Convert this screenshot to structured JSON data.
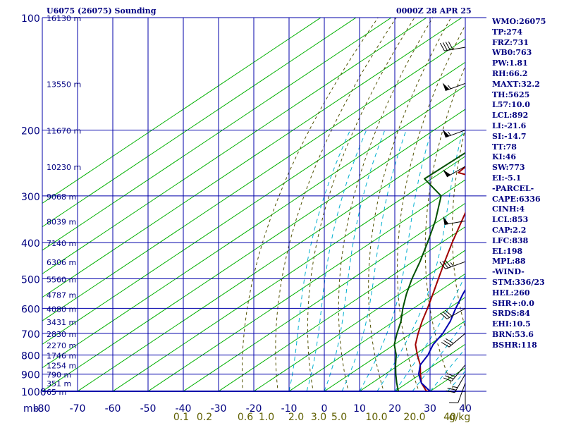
{
  "header": {
    "station": "U6075 (26075) Sounding",
    "time": "0000Z 28 APR 25"
  },
  "stats": [
    "WMO:26075",
    "TP:274",
    "FRZ:731",
    "WB0:763",
    "PW:1.81",
    "RH:66.2",
    "MAXT:32.2",
    "TH:5625",
    "L57:10.0",
    "LCL:892",
    "LI:-21.6",
    "SI:-14.7",
    "TT:78",
    "KI:46",
    "SW:773",
    "EI:-5.1",
    "-PARCEL-",
    "CAPE:6336",
    "CINH:4",
    "LCL:853",
    "CAP:2.2",
    "LFC:838",
    "EL:198",
    "MPL:88",
    "-WIND-",
    "STM:336/23",
    "HEL:260",
    "SHR+:0.0",
    "SRDS:84",
    "EHI:10.5",
    "BRN:53.6",
    "BSHR:118"
  ],
  "colors": {
    "grid": "#0000aa",
    "isotherm": "#00b000",
    "dry_adiabat": "#505000",
    "moist_adiabat": "#00b0d0",
    "temperature": "#a00000",
    "dewpoint": "#005000",
    "parcel": "#0000b0",
    "text": "#000080",
    "mixing_ratio_labels": "#606000"
  },
  "chart_data": {
    "type": "line",
    "subtype": "skew-T log-P sounding",
    "title": "U6075 (26075) Sounding",
    "ylabel": "mb",
    "xlabel": "",
    "yscale": "log",
    "xlim": [
      -80,
      40
    ],
    "ylim": [
      1000,
      100
    ],
    "pressure_ticks": [
      100,
      200,
      300,
      400,
      500,
      600,
      700,
      800,
      900,
      1000
    ],
    "temperature_ticks": [
      "-80",
      "-70",
      "-60",
      "-50",
      "-40",
      "-30",
      "-20",
      "-10",
      "0",
      "10",
      "20",
      "30",
      "40"
    ],
    "mixing_ratio_labels": [
      "0.1",
      "0.2",
      "0.6",
      "1.0",
      "2.0",
      "3.0",
      "5.0",
      "10.0",
      "20.0",
      "40",
      "g/kg"
    ],
    "height_labels": [
      {
        "p": 100,
        "label": "16130 m"
      },
      {
        "p": 150,
        "label": "13550 m"
      },
      {
        "p": 200,
        "label": "11670 m"
      },
      {
        "p": 250,
        "label": "10230 m"
      },
      {
        "p": 300,
        "label": "9068 m"
      },
      {
        "p": 350,
        "label": "8039 m"
      },
      {
        "p": 400,
        "label": "7140 m"
      },
      {
        "p": 450,
        "label": "6306 m"
      },
      {
        "p": 500,
        "label": "5560 m"
      },
      {
        "p": 550,
        "label": "4787 m"
      },
      {
        "p": 600,
        "label": "4080 m"
      },
      {
        "p": 650,
        "label": "3431 m"
      },
      {
        "p": 700,
        "label": "2830 m"
      },
      {
        "p": 750,
        "label": "2270 m"
      },
      {
        "p": 800,
        "label": "1746 m"
      },
      {
        "p": 850,
        "label": "1254 m"
      },
      {
        "p": 900,
        "label": "790 m"
      },
      {
        "p": 950,
        "label": "351 m"
      },
      {
        "p": 1000,
        "label": "65 m"
      }
    ],
    "series": [
      {
        "key": "temperature",
        "points": [
          {
            "p": 1007,
            "t": 32
          },
          {
            "p": 1000,
            "t": 29
          },
          {
            "p": 950,
            "t": 24
          },
          {
            "p": 900,
            "t": 20
          },
          {
            "p": 850,
            "t": 16
          },
          {
            "p": 800,
            "t": 11
          },
          {
            "p": 750,
            "t": 6
          },
          {
            "p": 700,
            "t": 2
          },
          {
            "p": 650,
            "t": -2
          },
          {
            "p": 600,
            "t": -6
          },
          {
            "p": 550,
            "t": -10.5
          },
          {
            "p": 500,
            "t": -15.5
          },
          {
            "p": 450,
            "t": -21
          },
          {
            "p": 400,
            "t": -27
          },
          {
            "p": 350,
            "t": -33.5
          },
          {
            "p": 300,
            "t": -41
          },
          {
            "p": 270,
            "t": -46
          },
          {
            "p": 260,
            "t": -55
          },
          {
            "p": 240,
            "t": -56
          },
          {
            "p": 210,
            "t": -55
          },
          {
            "p": 180,
            "t": -52
          },
          {
            "p": 170,
            "t": -51
          },
          {
            "p": 160,
            "t": -52
          },
          {
            "p": 140,
            "t": -52
          },
          {
            "p": 100,
            "t": -51
          }
        ]
      },
      {
        "key": "dewpoint",
        "points": [
          {
            "p": 1007,
            "t": 21
          },
          {
            "p": 1000,
            "t": 21
          },
          {
            "p": 950,
            "t": 17
          },
          {
            "p": 900,
            "t": 13
          },
          {
            "p": 850,
            "t": 9
          },
          {
            "p": 800,
            "t": 5
          },
          {
            "p": 750,
            "t": 0
          },
          {
            "p": 700,
            "t": -4
          },
          {
            "p": 650,
            "t": -8
          },
          {
            "p": 600,
            "t": -13
          },
          {
            "p": 550,
            "t": -18
          },
          {
            "p": 500,
            "t": -23
          },
          {
            "p": 450,
            "t": -28
          },
          {
            "p": 400,
            "t": -34
          },
          {
            "p": 350,
            "t": -41
          },
          {
            "p": 300,
            "t": -50
          },
          {
            "p": 270,
            "t": -62
          },
          {
            "p": 200,
            "t": -61
          },
          {
            "p": 170,
            "t": -60
          },
          {
            "p": 140,
            "t": -63
          },
          {
            "p": 100,
            "t": -71
          }
        ]
      },
      {
        "key": "parcel",
        "points": [
          {
            "p": 1000,
            "t": 30
          },
          {
            "p": 950,
            "t": 24
          },
          {
            "p": 900,
            "t": 19.5
          },
          {
            "p": 850,
            "t": 16
          },
          {
            "p": 800,
            "t": 14
          },
          {
            "p": 750,
            "t": 11
          },
          {
            "p": 700,
            "t": 9
          },
          {
            "p": 650,
            "t": 6
          },
          {
            "p": 600,
            "t": 2
          },
          {
            "p": 550,
            "t": -2
          },
          {
            "p": 500,
            "t": -6
          },
          {
            "p": 450,
            "t": -11
          },
          {
            "p": 400,
            "t": -18
          },
          {
            "p": 350,
            "t": -27
          },
          {
            "p": 300,
            "t": -38
          },
          {
            "p": 250,
            "t": -51
          },
          {
            "p": 200,
            "t": -63
          },
          {
            "p": 150,
            "t": -78
          },
          {
            "p": 125,
            "t": -88
          }
        ]
      }
    ],
    "wind_barbs": [
      {
        "p": 950,
        "dir": 200,
        "spd": 10
      },
      {
        "p": 900,
        "dir": 210,
        "spd": 25
      },
      {
        "p": 850,
        "dir": 220,
        "spd": 30
      },
      {
        "p": 700,
        "dir": 230,
        "spd": 30
      },
      {
        "p": 600,
        "dir": 240,
        "spd": 30
      },
      {
        "p": 450,
        "dir": 250,
        "spd": 35
      },
      {
        "p": 350,
        "dir": 260,
        "spd": 50
      },
      {
        "p": 250,
        "dir": 240,
        "spd": 50
      },
      {
        "p": 200,
        "dir": 250,
        "spd": 55
      },
      {
        "p": 150,
        "dir": 250,
        "spd": 55
      },
      {
        "p": 120,
        "dir": 260,
        "spd": 40
      }
    ],
    "grid": true
  }
}
